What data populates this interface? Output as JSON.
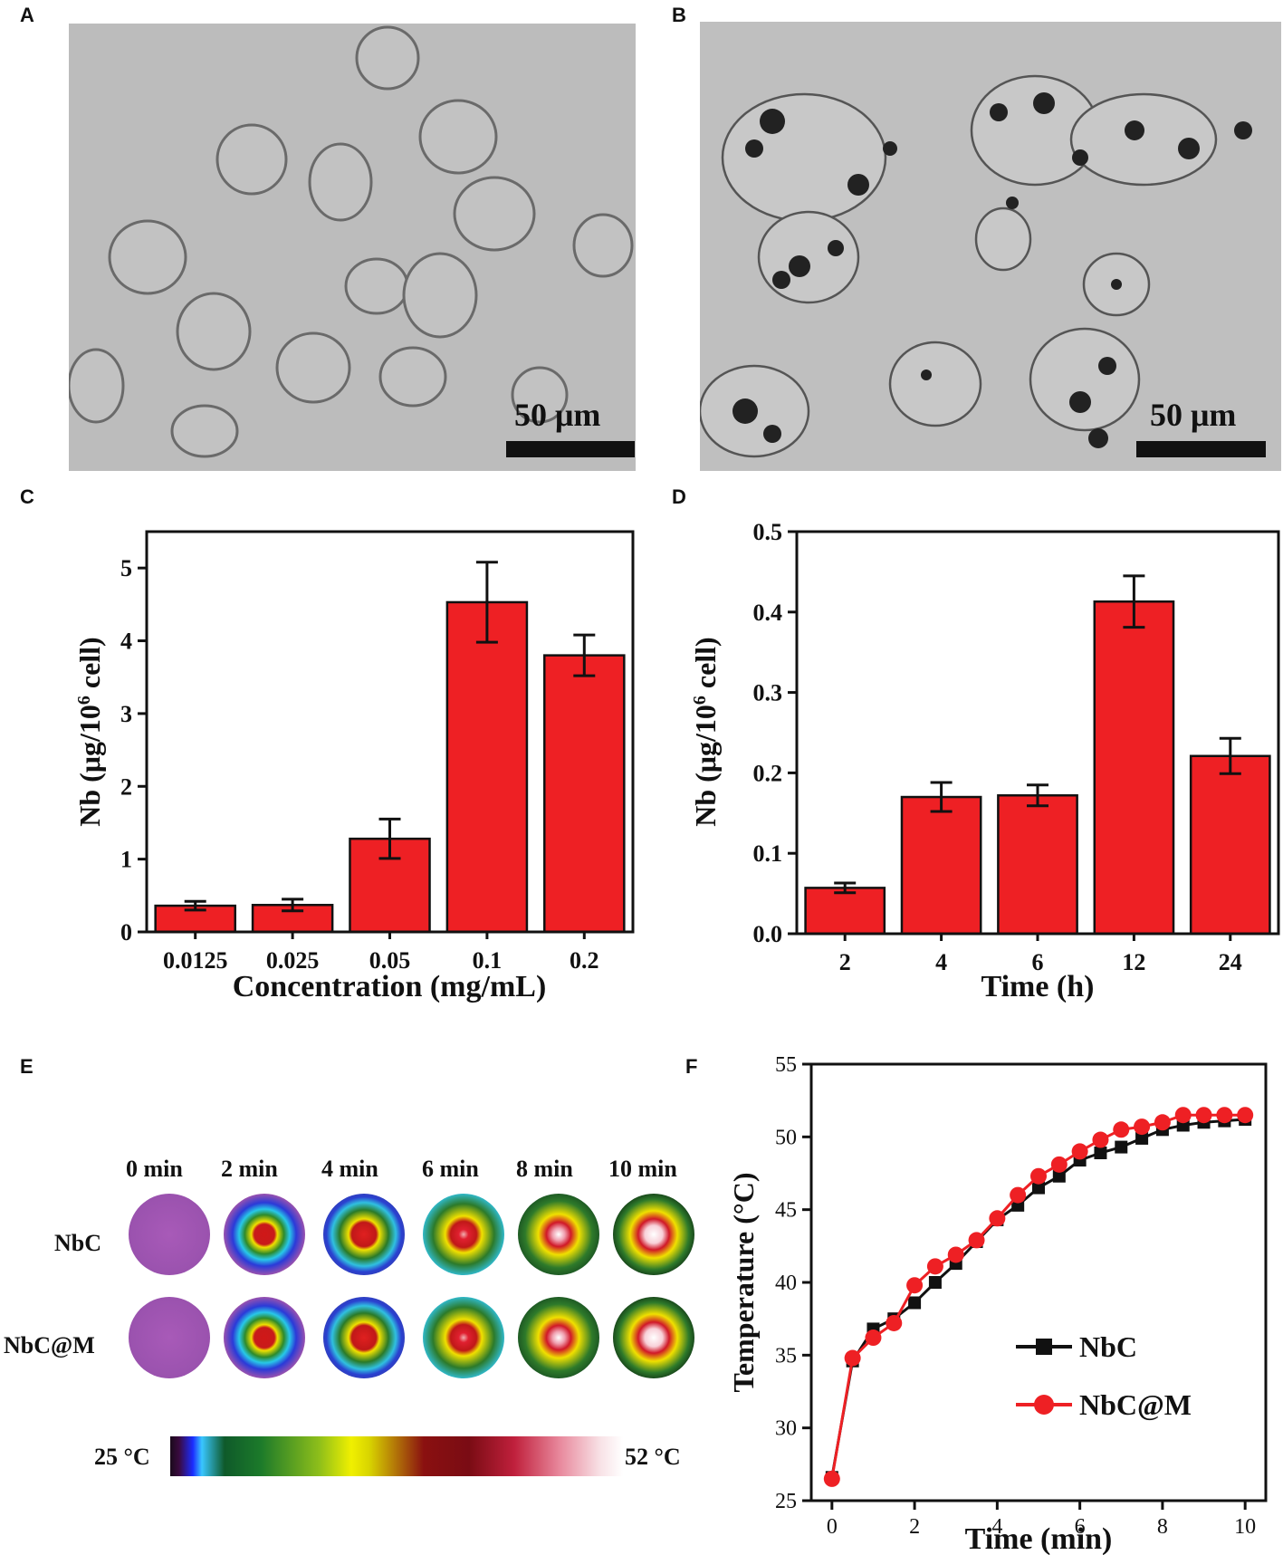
{
  "panels": {
    "a": {
      "letter": "A",
      "scale_label": "50 μm"
    },
    "b": {
      "letter": "B",
      "scale_label": "50 μm"
    },
    "c": {
      "letter": "C"
    },
    "d": {
      "letter": "D"
    },
    "e": {
      "letter": "E"
    },
    "f": {
      "letter": "F"
    }
  },
  "thermal": {
    "times": [
      "0 min",
      "2 min",
      "4 min",
      "6 min",
      "8 min",
      "10 min"
    ],
    "rows": [
      "NbC",
      "NbC@M"
    ],
    "scale_min": "25 °C",
    "scale_max": "52 °C"
  },
  "chart_data": [
    {
      "id": "C",
      "type": "bar",
      "categories": [
        "0.0125",
        "0.025",
        "0.05",
        "0.1",
        "0.2"
      ],
      "values": [
        0.36,
        0.37,
        1.28,
        4.53,
        3.8
      ],
      "errors": [
        0.06,
        0.08,
        0.27,
        0.55,
        0.28
      ],
      "xlabel": "Concentration (mg/mL)",
      "ylabel_main": "Nb (μg/10",
      "ylabel_sup": "6",
      "ylabel_tail": " cell)",
      "ylim": [
        0,
        5.5
      ],
      "yticks": [
        0,
        1,
        2,
        3,
        4,
        5
      ],
      "ytick_labels": [
        "0",
        "1",
        "2",
        "3",
        "4",
        "5"
      ],
      "color": "#ee2024"
    },
    {
      "id": "D",
      "type": "bar",
      "categories": [
        "2",
        "4",
        "6",
        "12",
        "24"
      ],
      "values": [
        0.057,
        0.17,
        0.172,
        0.413,
        0.221
      ],
      "errors": [
        0.006,
        0.018,
        0.013,
        0.032,
        0.022
      ],
      "xlabel": "Time (h)",
      "ylabel_main": "Nb (μg/10",
      "ylabel_sup": "6",
      "ylabel_tail": " cell)",
      "ylim": [
        0,
        0.5
      ],
      "yticks": [
        0,
        0.1,
        0.2,
        0.3,
        0.4,
        0.5
      ],
      "ytick_labels": [
        "0.0",
        "0.1",
        "0.2",
        "0.3",
        "0.4",
        "0.5"
      ],
      "color": "#ee2024"
    },
    {
      "id": "F",
      "type": "line",
      "xlabel": "Time (min)",
      "ylabel": "Temperature (°C)",
      "xlim": [
        -0.5,
        10.5
      ],
      "ylim": [
        25,
        55
      ],
      "xticks": [
        0,
        2,
        4,
        6,
        8,
        10
      ],
      "yticks": [
        25,
        30,
        35,
        40,
        45,
        50,
        55
      ],
      "legend_position": "bottom-right",
      "series": [
        {
          "name": "NbC",
          "color": "#111111",
          "marker": "square",
          "x": [
            0,
            0.5,
            1,
            1.5,
            2,
            2.5,
            3,
            3.5,
            4,
            4.5,
            5,
            5.5,
            6,
            6.5,
            7,
            7.5,
            8,
            8.5,
            9,
            9.5,
            10
          ],
          "y": [
            26.6,
            34.6,
            36.8,
            37.5,
            38.6,
            40.0,
            41.3,
            42.8,
            44.3,
            45.3,
            46.5,
            47.3,
            48.4,
            48.9,
            49.3,
            49.9,
            50.5,
            50.8,
            51.0,
            51.1,
            51.2
          ]
        },
        {
          "name": "NbC@M",
          "color": "#ee2024",
          "marker": "circle",
          "x": [
            0,
            0.5,
            1,
            1.5,
            2,
            2.5,
            3,
            3.5,
            4,
            4.5,
            5,
            5.5,
            6,
            6.5,
            7,
            7.5,
            8,
            8.5,
            9,
            9.5,
            10
          ],
          "y": [
            26.5,
            34.8,
            36.2,
            37.2,
            39.8,
            41.1,
            41.9,
            42.9,
            44.4,
            46.0,
            47.3,
            48.1,
            49.0,
            49.8,
            50.5,
            50.7,
            51.0,
            51.5,
            51.5,
            51.5,
            51.5
          ]
        }
      ]
    }
  ]
}
